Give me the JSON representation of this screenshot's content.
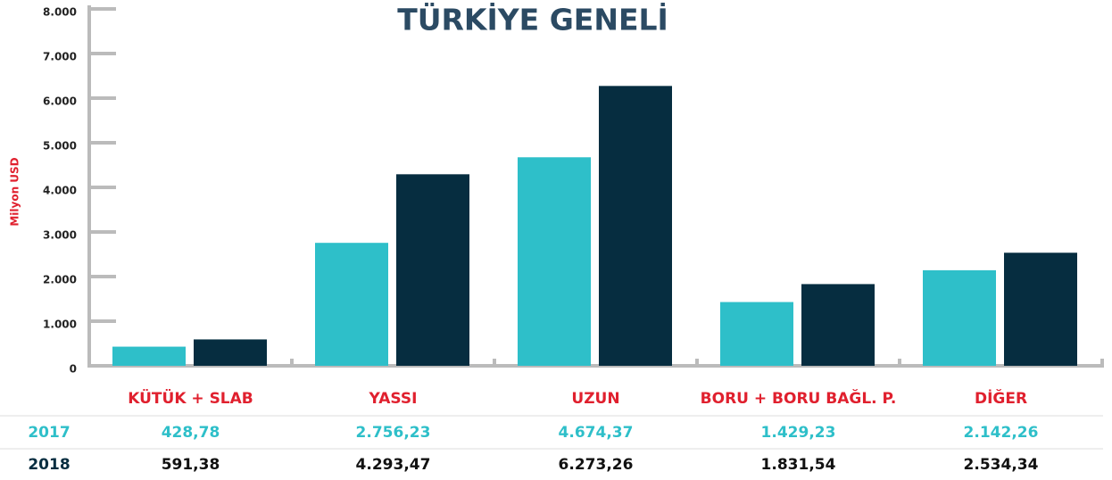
{
  "chart_data": {
    "type": "bar",
    "title": "TÜRKİYE GENELİ",
    "y_label": "Milyon USD",
    "categories": [
      "KÜTÜK + SLAB",
      "YASSI",
      "UZUN",
      "BORU + BORU BAĞL. P.",
      "DİĞER"
    ],
    "series": [
      {
        "name": "2017",
        "color": "#2ebfc9",
        "values": [
          428.78,
          2756.23,
          4674.37,
          1429.23,
          2142.26
        ],
        "value_labels": [
          "428,78",
          "2.756,23",
          "4.674,37",
          "1.429,23",
          "2.142,26"
        ]
      },
      {
        "name": "2018",
        "color": "#062d40",
        "values": [
          591.38,
          4293.47,
          6273.26,
          1831.54,
          2534.34
        ],
        "value_labels": [
          "591,38",
          "4.293,47",
          "6.273,26",
          "1.831,54",
          "2.534,34"
        ]
      }
    ],
    "ylim": [
      0,
      8000
    ],
    "yticks": [
      0,
      {
        "value": 1000,
        "label": "1.000"
      },
      {
        "value": 2000,
        "label": "2.000"
      },
      {
        "value": 3000,
        "label": "3.000"
      },
      {
        "value": 4000,
        "label": "4.000"
      },
      {
        "value": 5000,
        "label": "5.000"
      },
      {
        "value": 6000,
        "label": "6.000"
      },
      {
        "value": 7000,
        "label": "7.000"
      },
      {
        "value": 8000,
        "label": "8.000"
      }
    ]
  }
}
